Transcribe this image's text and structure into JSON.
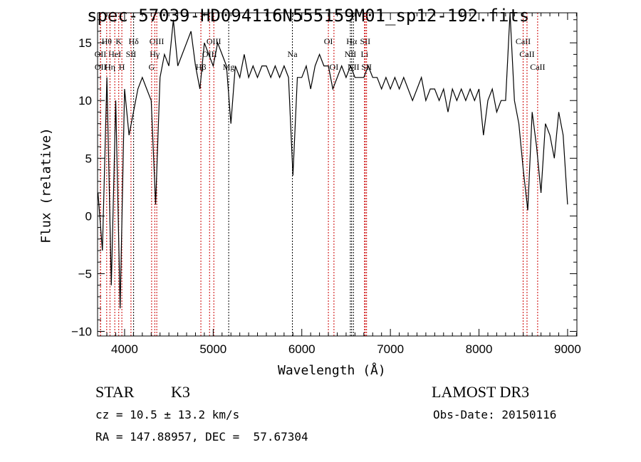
{
  "chart_data": {
    "type": "line",
    "title": "spec-57039-HD094116N555159M01_sp12-192.fits",
    "xlabel": "Wavelength (Å)",
    "ylabel": "Flux (relative)",
    "xlim": [
      3695,
      9105
    ],
    "ylim": [
      -10.4,
      17.6
    ],
    "xticks": [
      4000,
      5000,
      6000,
      7000,
      8000,
      9000
    ],
    "yticks": [
      -10,
      -5,
      0,
      5,
      10,
      15
    ],
    "series": [
      {
        "name": "spectrum",
        "x_start": 3700,
        "x_step": 50,
        "values": [
          2,
          -3,
          12,
          -6,
          10,
          -8,
          11,
          7,
          9,
          11,
          12,
          11,
          10,
          1,
          12,
          14,
          13,
          17,
          13,
          14,
          15,
          16,
          13,
          11,
          15,
          14,
          13,
          15,
          14,
          13,
          8,
          13,
          12,
          14,
          12,
          13,
          12,
          13,
          13,
          12,
          13,
          12,
          13,
          12,
          3.5,
          12,
          12,
          13,
          11,
          13,
          14,
          13,
          13,
          11,
          12,
          13,
          12,
          13,
          12,
          12,
          12,
          13,
          12,
          12,
          11,
          12,
          11,
          12,
          11,
          12,
          11,
          10,
          11,
          12,
          10,
          11,
          11,
          10,
          11,
          9,
          11,
          10,
          11,
          10,
          11,
          10,
          11,
          7,
          10,
          11,
          9,
          10,
          10,
          17.6,
          10,
          8,
          4,
          0.5,
          9,
          6,
          2,
          8,
          7,
          5,
          9,
          7,
          1
        ]
      }
    ],
    "lines": [
      {
        "label": "Hθ",
        "wave": 3798,
        "row": 0,
        "color": "#cc0000"
      },
      {
        "label": "K",
        "wave": 3934,
        "row": 0,
        "color": "#cc0000"
      },
      {
        "label": "Hδ",
        "wave": 4102,
        "row": 0,
        "color": "#000000"
      },
      {
        "label": "OIII",
        "wave": 4363,
        "row": 0,
        "color": "#cc0000"
      },
      {
        "label": "OIII",
        "wave": 5007,
        "row": 0,
        "color": "#cc0000"
      },
      {
        "label": "OII",
        "wave": 3727,
        "row": 1,
        "color": "#cc0000"
      },
      {
        "label": "HeI",
        "wave": 3889,
        "row": 1,
        "color": "#cc0000"
      },
      {
        "label": "SII",
        "wave": 4072,
        "row": 1,
        "color": "#cc0000"
      },
      {
        "label": "Hγ",
        "wave": 4340,
        "row": 1,
        "color": "#cc0000"
      },
      {
        "label": "OIII",
        "wave": 4959,
        "row": 1,
        "color": "#cc0000"
      },
      {
        "label": "OII",
        "wave": 3729,
        "row": 2,
        "color": "#cc0000"
      },
      {
        "label": "Hη",
        "wave": 3835,
        "row": 2,
        "color": "#cc0000"
      },
      {
        "label": "H",
        "wave": 3969,
        "row": 2,
        "color": "#cc0000"
      },
      {
        "label": "G",
        "wave": 4305,
        "row": 2,
        "color": "#cc0000"
      },
      {
        "label": "Hβ",
        "wave": 4861,
        "row": 2,
        "color": "#cc0000"
      },
      {
        "label": "Mg",
        "wave": 5175,
        "row": 2,
        "color": "#000000"
      },
      {
        "label": "Na",
        "wave": 5894,
        "row": 1,
        "color": "#000000"
      },
      {
        "label": "OI",
        "wave": 6300,
        "row": 0,
        "color": "#cc0000"
      },
      {
        "label": "OI",
        "wave": 6363,
        "row": 2,
        "color": "#cc0000"
      },
      {
        "label": "Hα",
        "wave": 6563,
        "row": 0,
        "color": "#000000"
      },
      {
        "label": "SII",
        "wave": 6716,
        "row": 0,
        "color": "#cc0000"
      },
      {
        "label": "NII",
        "wave": 6548,
        "row": 1,
        "color": "#000000"
      },
      {
        "label": "Li",
        "wave": 6708,
        "row": 1,
        "color": "#cc0000"
      },
      {
        "label": "NII",
        "wave": 6583,
        "row": 2,
        "color": "#000000"
      },
      {
        "label": "SII",
        "wave": 6731,
        "row": 2,
        "color": "#cc0000"
      },
      {
        "label": "CaII",
        "wave": 8498,
        "row": 0,
        "color": "#cc0000"
      },
      {
        "label": "CaII",
        "wave": 8542,
        "row": 1,
        "color": "#cc0000"
      },
      {
        "label": "CaII",
        "wave": 8662,
        "row": 2,
        "color": "#cc0000"
      }
    ]
  },
  "info": {
    "class": "STAR",
    "subclass": "K3",
    "cz": "cz = 10.5 ± 13.2 km/s",
    "coords": "RA = 147.88957, DEC =  57.67304",
    "survey": "LAMOST DR3",
    "obs_date": "Obs-Date: 20150116"
  }
}
